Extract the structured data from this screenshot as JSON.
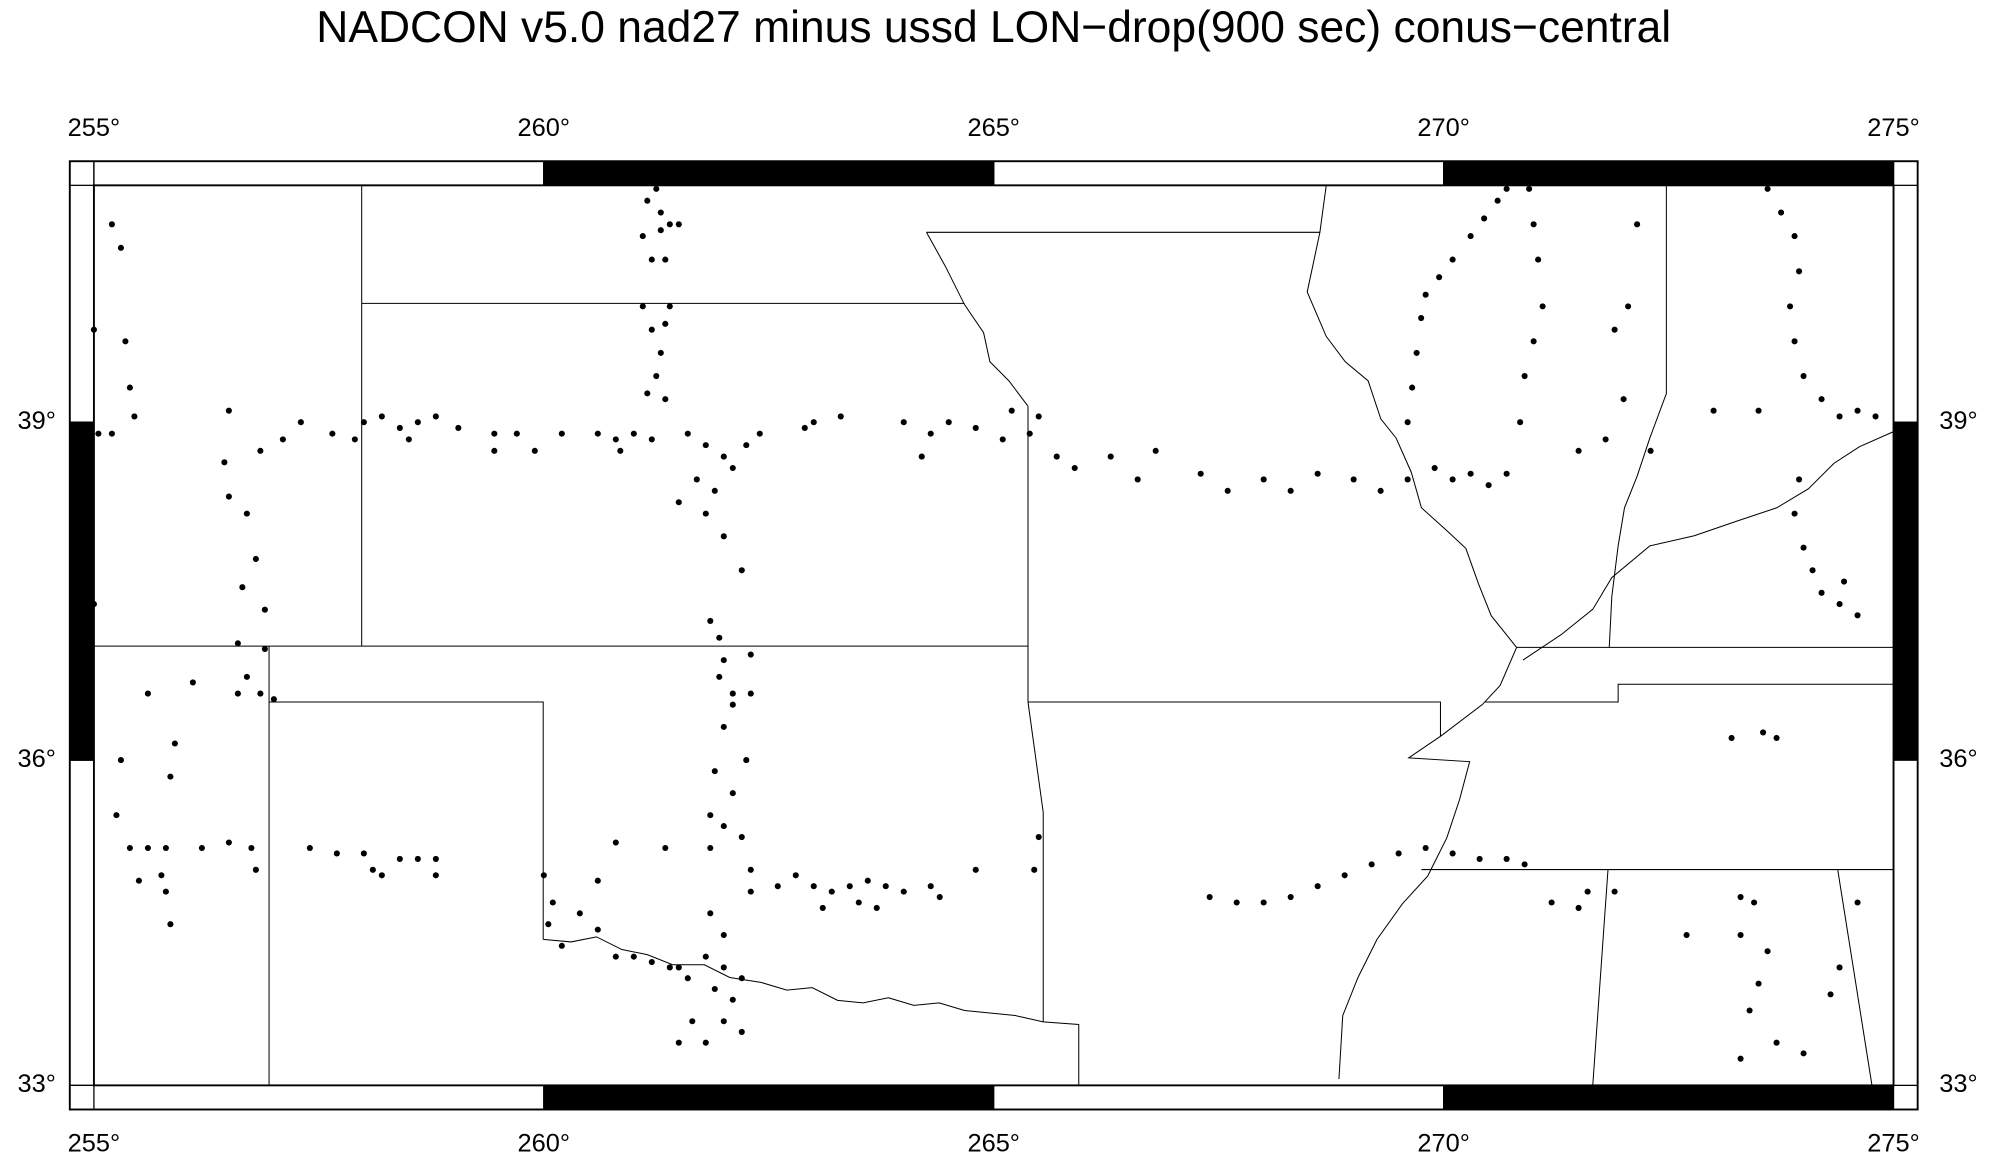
{
  "chart_data": {
    "type": "scatter",
    "title": "NADCON v5.0 nad27 minus ussd LON−drop(900 sec) conus−central",
    "xlim": [
      255,
      275
    ],
    "ylim": [
      33,
      41.03
    ],
    "color": "#000000",
    "xticks": [
      {
        "value": 255,
        "label": "255°"
      },
      {
        "value": 260,
        "label": "260°"
      },
      {
        "value": 265,
        "label": "265°"
      },
      {
        "value": 270,
        "label": "270°"
      },
      {
        "value": 275,
        "label": "275°"
      }
    ],
    "yticks": [
      {
        "value": 33,
        "label": "33°"
      },
      {
        "value": 36,
        "label": "36°"
      },
      {
        "value": 39,
        "label": "39°"
      }
    ],
    "x": [
      255.0,
      255.05,
      255.0,
      255.2,
      255.3,
      255.35,
      255.4,
      255.45,
      255.2,
      255.3,
      255.25,
      255.4,
      255.6,
      255.8,
      255.5,
      255.75,
      255.8,
      255.85,
      255.6,
      255.9,
      255.85,
      256.1,
      256.2,
      256.5,
      256.75,
      256.8,
      256.5,
      256.45,
      256.5,
      256.85,
      256.7,
      256.8,
      256.65,
      256.9,
      256.6,
      256.9,
      256.7,
      256.85,
      257.0,
      256.6,
      257.1,
      257.3,
      257.65,
      257.9,
      258.0,
      258.2,
      258.4,
      258.6,
      258.8,
      259.05,
      258.5,
      257.4,
      257.7,
      258.0,
      258.1,
      258.4,
      258.6,
      258.8,
      258.8,
      258.2,
      259.45,
      259.45,
      259.7,
      259.9,
      260.2,
      260.6,
      260.8,
      261.0,
      261.2,
      260.85,
      261.15,
      261.25,
      261.3,
      261.1,
      261.3,
      261.4,
      261.5,
      261.2,
      261.35,
      261.1,
      261.2,
      261.3,
      261.35,
      261.4,
      261.25,
      261.15,
      261.35,
      261.6,
      261.8,
      262.0,
      261.7,
      261.9,
      262.1,
      261.8,
      262.0,
      261.5,
      262.2,
      262.4,
      262.25,
      261.85,
      261.95,
      262.0,
      261.95,
      262.1,
      262.3,
      262.3,
      262.0,
      262.1,
      261.9,
      261.85,
      261.85,
      262.0,
      262.1,
      262.2,
      262.3,
      262.3,
      262.25,
      262.6,
      262.8,
      263.0,
      263.2,
      263.4,
      263.5,
      263.6,
      263.8,
      264.0,
      264.3,
      264.4,
      263.1,
      263.7,
      264.8,
      265.5,
      265.45,
      260.0,
      260.1,
      260.05,
      260.2,
      260.4,
      260.6,
      260.8,
      261.0,
      261.2,
      261.4,
      261.5,
      261.6,
      261.8,
      262.0,
      261.9,
      261.65,
      262.0,
      262.2,
      261.8,
      262.1,
      262.0,
      261.35,
      260.8,
      260.6,
      261.85,
      262.2,
      261.5,
      263.0,
      263.3,
      262.9,
      264.0,
      264.3,
      264.5,
      264.8,
      265.1,
      265.4,
      265.5,
      265.7,
      265.9,
      266.3,
      266.6,
      266.8,
      267.3,
      267.6,
      268.0,
      268.3,
      268.6,
      269.0,
      269.3,
      269.6,
      269.9,
      270.1,
      270.3,
      270.5,
      270.7,
      265.2,
      264.2,
      269.6,
      269.65,
      269.7,
      269.75,
      269.8,
      269.95,
      270.1,
      270.3,
      270.45,
      270.6,
      270.7,
      270.95,
      271.0,
      271.05,
      271.1,
      271.0,
      270.9,
      270.85,
      272.15,
      272.05,
      271.9,
      272.0,
      271.8,
      271.5,
      272.3,
      273.0,
      273.5,
      273.6,
      273.75,
      273.9,
      273.95,
      273.85,
      273.9,
      274.0,
      274.2,
      274.4,
      274.6,
      274.8,
      273.95,
      273.9,
      274.0,
      274.1,
      274.2,
      274.4,
      274.6,
      274.45,
      273.2,
      273.55,
      273.7,
      267.4,
      267.7,
      268.0,
      268.3,
      268.6,
      268.9,
      269.2,
      269.5,
      269.8,
      270.1,
      270.4,
      270.7,
      270.9,
      271.2,
      271.6,
      271.5,
      271.9,
      272.7,
      273.3,
      273.45,
      273.3,
      273.6,
      273.5,
      273.4,
      273.3,
      273.7,
      274.0,
      274.3,
      274.4,
      274.6
    ],
    "y": [
      39.8,
      38.9,
      37.4,
      40.7,
      40.5,
      39.7,
      39.3,
      39.05,
      38.9,
      36.0,
      35.5,
      35.2,
      35.2,
      35.2,
      34.9,
      34.95,
      34.8,
      34.5,
      36.6,
      36.15,
      35.85,
      36.7,
      35.2,
      35.25,
      35.2,
      35.0,
      39.1,
      38.65,
      38.35,
      38.75,
      38.2,
      37.8,
      37.55,
      37.35,
      37.05,
      37.0,
      36.75,
      36.6,
      36.55,
      36.6,
      38.85,
      39.0,
      38.9,
      38.85,
      39.0,
      39.05,
      38.95,
      39.0,
      39.05,
      38.95,
      38.85,
      35.2,
      35.15,
      35.15,
      35.0,
      35.1,
      35.1,
      35.1,
      34.95,
      34.95,
      38.9,
      38.75,
      38.9,
      38.75,
      38.9,
      38.9,
      38.85,
      38.9,
      38.85,
      38.75,
      40.9,
      41.0,
      40.8,
      40.6,
      40.65,
      40.7,
      40.7,
      40.4,
      40.4,
      40.0,
      39.8,
      39.6,
      39.85,
      40.0,
      39.4,
      39.25,
      39.2,
      38.9,
      38.8,
      38.7,
      38.5,
      38.4,
      38.6,
      38.2,
      38.0,
      38.3,
      37.7,
      38.9,
      38.8,
      37.25,
      37.1,
      36.9,
      36.75,
      36.6,
      36.95,
      36.6,
      36.3,
      36.5,
      35.9,
      35.5,
      35.2,
      35.4,
      35.7,
      35.3,
      35.0,
      34.8,
      36.0,
      34.85,
      34.95,
      34.85,
      34.8,
      34.85,
      34.7,
      34.9,
      34.85,
      34.8,
      34.85,
      34.75,
      34.65,
      34.65,
      35.0,
      35.3,
      35.0,
      34.95,
      34.7,
      34.5,
      34.3,
      34.6,
      34.45,
      34.2,
      34.2,
      34.15,
      34.1,
      34.1,
      34.0,
      34.2,
      34.1,
      33.9,
      33.6,
      33.6,
      33.5,
      33.4,
      33.8,
      34.4,
      35.2,
      35.25,
      34.9,
      34.6,
      34.0,
      33.4,
      39.0,
      39.05,
      38.95,
      39.0,
      38.9,
      39.0,
      38.95,
      38.85,
      38.9,
      39.05,
      38.7,
      38.6,
      38.7,
      38.5,
      38.75,
      38.55,
      38.4,
      38.5,
      38.4,
      38.55,
      38.5,
      38.4,
      38.5,
      38.6,
      38.5,
      38.55,
      38.45,
      38.55,
      39.1,
      38.7,
      39.0,
      39.3,
      39.6,
      39.9,
      40.1,
      40.25,
      40.4,
      40.6,
      40.75,
      40.9,
      41.0,
      41.0,
      40.7,
      40.4,
      40.0,
      39.7,
      39.4,
      39.0,
      40.7,
      40.0,
      39.8,
      39.2,
      38.85,
      38.75,
      38.75,
      39.1,
      39.1,
      41.0,
      40.8,
      40.6,
      40.3,
      40.0,
      39.7,
      39.4,
      39.2,
      39.05,
      39.1,
      39.05,
      38.5,
      38.2,
      37.9,
      37.7,
      37.5,
      37.4,
      37.3,
      37.6,
      36.2,
      36.25,
      36.2,
      34.75,
      34.7,
      34.7,
      34.75,
      34.85,
      34.95,
      35.05,
      35.15,
      35.2,
      35.15,
      35.1,
      35.1,
      35.05,
      34.7,
      34.8,
      34.65,
      34.8,
      34.4,
      34.75,
      34.7,
      34.4,
      34.25,
      33.95,
      33.7,
      33.25,
      33.4,
      33.3,
      33.85,
      34.1,
      34.7
    ]
  }
}
